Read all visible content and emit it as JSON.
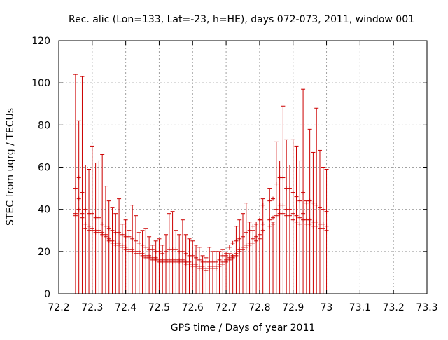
{
  "chart_data": {
    "type": "scatter",
    "title": "Rec. alic (Lon=133, Lat=-23, h=HE), days 072-073, 2011, window 001",
    "xlabel": "GPS time / Days of year 2011",
    "ylabel": "STEC from uqrg / TECUs",
    "xlim": [
      72.2,
      73.3
    ],
    "ylim": [
      0,
      120
    ],
    "x_ticks": [
      "72.2",
      "72.3",
      "72.4",
      "72.5",
      "72.6",
      "72.7",
      "72.8",
      "72.9",
      "73",
      "73.1",
      "73.2",
      "73.3"
    ],
    "y_ticks": [
      "0",
      "20",
      "40",
      "60",
      "80",
      "100",
      "120"
    ],
    "grid": true,
    "color": "#cc0000",
    "x_start": 72.25,
    "x_step": 0.01,
    "bars": [
      [
        0,
        104
      ],
      [
        0,
        82
      ],
      [
        0,
        103
      ],
      [
        0,
        61
      ],
      [
        0,
        59
      ],
      [
        0,
        70
      ],
      [
        0,
        62
      ],
      [
        0,
        63
      ],
      [
        0,
        66
      ],
      [
        0,
        51
      ],
      [
        0,
        44
      ],
      [
        0,
        41
      ],
      [
        0,
        38
      ],
      [
        0,
        45
      ],
      [
        0,
        33
      ],
      [
        0,
        35
      ],
      [
        0,
        30
      ],
      [
        0,
        42
      ],
      [
        0,
        37
      ],
      [
        0,
        29
      ],
      [
        0,
        30
      ],
      [
        0,
        31
      ],
      [
        0,
        27
      ],
      [
        0,
        23
      ],
      [
        0,
        25
      ],
      [
        0,
        26
      ],
      [
        0,
        23
      ],
      [
        0,
        28
      ],
      [
        0,
        38
      ],
      [
        0,
        39
      ],
      [
        0,
        30
      ],
      [
        0,
        28
      ],
      [
        0,
        35
      ],
      [
        0,
        28
      ],
      [
        0,
        26
      ],
      [
        0,
        25
      ],
      [
        0,
        23
      ],
      [
        0,
        22
      ],
      [
        0,
        18
      ],
      [
        0,
        17
      ],
      [
        0,
        22
      ],
      [
        0,
        20
      ],
      [
        0,
        20
      ],
      [
        0,
        20
      ],
      [
        0,
        21
      ],
      [
        0,
        18
      ],
      [
        0,
        19
      ],
      [
        0,
        18
      ],
      [
        0,
        32
      ],
      [
        0,
        35
      ],
      [
        0,
        38
      ],
      [
        0,
        43
      ],
      [
        0,
        34
      ],
      [
        0,
        30
      ],
      [
        0,
        33
      ],
      [
        0,
        35
      ],
      [
        0,
        45
      ],
      [
        0,
        0
      ],
      [
        0,
        50
      ],
      [
        0,
        34
      ],
      [
        0,
        72
      ],
      [
        0,
        63
      ],
      [
        0,
        89
      ],
      [
        0,
        73
      ],
      [
        0,
        61
      ],
      [
        0,
        73
      ],
      [
        0,
        70
      ],
      [
        0,
        63
      ],
      [
        0,
        97
      ],
      [
        0,
        44
      ],
      [
        0,
        78
      ],
      [
        0,
        67
      ],
      [
        0,
        88
      ],
      [
        0,
        68
      ],
      [
        0,
        60
      ],
      [
        0,
        59
      ]
    ],
    "series": [
      {
        "name": "",
        "values": [
          50,
          55,
          48,
          40,
          38,
          38,
          36,
          36,
          33,
          32,
          31,
          30,
          29,
          29,
          28,
          27,
          27,
          26,
          25,
          24,
          23,
          22,
          21,
          21,
          20,
          20,
          19,
          20,
          21,
          21,
          21,
          20,
          20,
          19,
          18,
          18,
          17,
          16,
          15,
          15,
          15,
          15,
          15,
          16,
          18,
          19,
          22,
          24,
          25,
          26,
          27,
          29,
          30,
          32,
          33,
          35,
          42,
          null,
          44,
          45,
          52,
          55,
          55,
          50,
          50,
          48,
          46,
          44,
          48,
          43,
          44,
          43,
          42,
          41,
          40,
          39
        ]
      },
      {
        "name": "",
        "values": [
          38,
          45,
          38,
          33,
          32,
          31,
          30,
          30,
          29,
          28,
          26,
          25,
          24,
          24,
          23,
          22,
          21,
          21,
          20,
          20,
          19,
          18,
          18,
          17,
          17,
          16,
          16,
          16,
          16,
          16,
          16,
          16,
          16,
          15,
          15,
          14,
          14,
          13,
          13,
          12,
          13,
          13,
          13,
          14,
          15,
          16,
          17,
          18,
          19,
          21,
          22,
          23,
          24,
          26,
          27,
          28,
          33,
          null,
          35,
          36,
          40,
          42,
          42,
          40,
          40,
          38,
          37,
          36,
          38,
          35,
          35,
          34,
          34,
          33,
          33,
          32
        ]
      },
      {
        "name": "",
        "values": [
          37,
          40,
          36,
          31,
          30,
          30,
          29,
          29,
          28,
          27,
          25,
          24,
          23,
          23,
          22,
          21,
          20,
          20,
          19,
          19,
          18,
          17,
          17,
          16,
          16,
          15,
          15,
          15,
          15,
          15,
          15,
          15,
          15,
          14,
          14,
          13,
          13,
          12,
          12,
          11,
          12,
          12,
          12,
          13,
          14,
          15,
          16,
          17,
          18,
          20,
          21,
          22,
          23,
          24,
          25,
          26,
          30,
          null,
          32,
          33,
          37,
          38,
          38,
          37,
          37,
          35,
          34,
          33,
          35,
          33,
          33,
          32,
          32,
          31,
          31,
          30
        ]
      }
    ]
  }
}
